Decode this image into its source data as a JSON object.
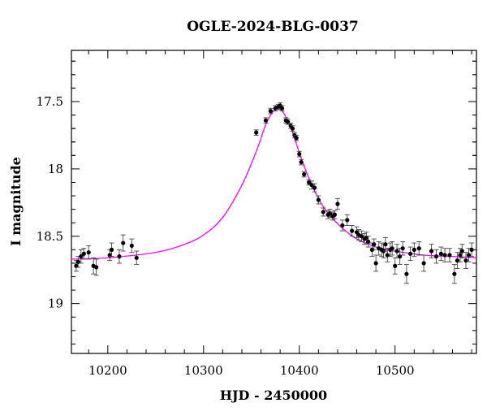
{
  "chart_data": {
    "type": "scatter",
    "title": "OGLE-2024-BLG-0037",
    "xlabel": "HJD - 2450000",
    "ylabel": "I magnitude",
    "xlim": [
      10162,
      10585
    ],
    "ylim": [
      19.37,
      17.12
    ],
    "y_inverted": true,
    "x_ticks": [
      10200,
      10300,
      10400,
      10500
    ],
    "x_tick_labels": [
      "10200",
      "10300",
      "10400",
      "10500"
    ],
    "y_ticks": [
      17.5,
      18,
      18.5,
      19
    ],
    "y_tick_labels": [
      "17.5",
      "18",
      "18.5",
      "19"
    ],
    "grid": false,
    "colors": {
      "data": "#000000",
      "model": "#ff00ff"
    },
    "model": {
      "type": "point-lens microlensing fit",
      "peak_hjd": 10378,
      "peak_mag": 17.55,
      "baseline_mag": 18.67,
      "x": [
        10162,
        10200,
        10250,
        10280,
        10300,
        10320,
        10340,
        10355,
        10365,
        10372,
        10378,
        10384,
        10392,
        10400,
        10410,
        10420,
        10430,
        10445,
        10460,
        10480,
        10500,
        10530,
        10560,
        10585
      ],
      "y": [
        18.67,
        18.66,
        18.62,
        18.56,
        18.49,
        18.36,
        18.12,
        17.87,
        17.67,
        17.58,
        17.55,
        17.59,
        17.71,
        17.88,
        18.07,
        18.22,
        18.33,
        18.44,
        18.52,
        18.58,
        18.61,
        18.64,
        18.65,
        18.66
      ]
    },
    "series": [
      {
        "x": [
          10167,
          10169,
          10172,
          10175,
          10180,
          10185,
          10188,
          10202,
          10204,
          10212,
          10216,
          10225,
          10230,
          10355,
          10365,
          10370,
          10375,
          10378,
          10380,
          10382,
          10386,
          10388,
          10391,
          10393,
          10395,
          10397,
          10400,
          10402,
          10405,
          10410,
          10413,
          10416,
          10420,
          10425,
          10430,
          10432,
          10435,
          10437,
          10440,
          10445,
          10450,
          10455,
          10460,
          10462,
          10465,
          10468,
          10470,
          10472,
          10476,
          10478,
          10480,
          10483,
          10486,
          10488,
          10490,
          10492,
          10495,
          10497,
          10500,
          10502,
          10505,
          10508,
          10512,
          10516,
          10520,
          10525,
          10530,
          10538,
          10543,
          10548,
          10552,
          10557,
          10562,
          10565,
          10568,
          10570,
          10574,
          10577,
          10580
        ],
        "y": [
          18.72,
          18.69,
          18.65,
          18.63,
          18.62,
          18.72,
          18.73,
          18.64,
          18.6,
          18.65,
          18.55,
          18.57,
          18.66,
          17.73,
          17.64,
          17.57,
          17.55,
          17.54,
          17.53,
          17.55,
          17.64,
          17.65,
          17.68,
          17.7,
          17.75,
          17.77,
          17.89,
          17.95,
          18.04,
          18.1,
          18.12,
          18.14,
          18.23,
          18.32,
          18.34,
          18.33,
          18.35,
          18.34,
          18.26,
          18.42,
          18.38,
          18.46,
          18.47,
          18.49,
          18.5,
          18.52,
          18.51,
          18.54,
          18.6,
          18.56,
          18.7,
          18.59,
          18.6,
          18.61,
          18.56,
          18.64,
          18.6,
          18.59,
          18.72,
          18.61,
          18.65,
          18.59,
          18.78,
          18.63,
          18.6,
          18.59,
          18.7,
          18.61,
          18.65,
          18.63,
          18.64,
          18.64,
          18.78,
          18.68,
          18.64,
          18.61,
          18.68,
          18.64,
          18.6
        ],
        "err": [
          0.04,
          0.04,
          0.05,
          0.04,
          0.05,
          0.06,
          0.06,
          0.04,
          0.05,
          0.05,
          0.06,
          0.05,
          0.05,
          0.02,
          0.02,
          0.02,
          0.02,
          0.02,
          0.02,
          0.02,
          0.02,
          0.02,
          0.02,
          0.02,
          0.02,
          0.02,
          0.02,
          0.02,
          0.02,
          0.02,
          0.03,
          0.03,
          0.03,
          0.03,
          0.03,
          0.03,
          0.03,
          0.03,
          0.04,
          0.04,
          0.04,
          0.04,
          0.04,
          0.04,
          0.04,
          0.04,
          0.04,
          0.04,
          0.05,
          0.04,
          0.06,
          0.05,
          0.05,
          0.05,
          0.05,
          0.05,
          0.05,
          0.05,
          0.06,
          0.05,
          0.06,
          0.05,
          0.07,
          0.05,
          0.05,
          0.05,
          0.06,
          0.05,
          0.05,
          0.05,
          0.05,
          0.05,
          0.07,
          0.06,
          0.05,
          0.05,
          0.06,
          0.05,
          0.05
        ]
      }
    ]
  }
}
